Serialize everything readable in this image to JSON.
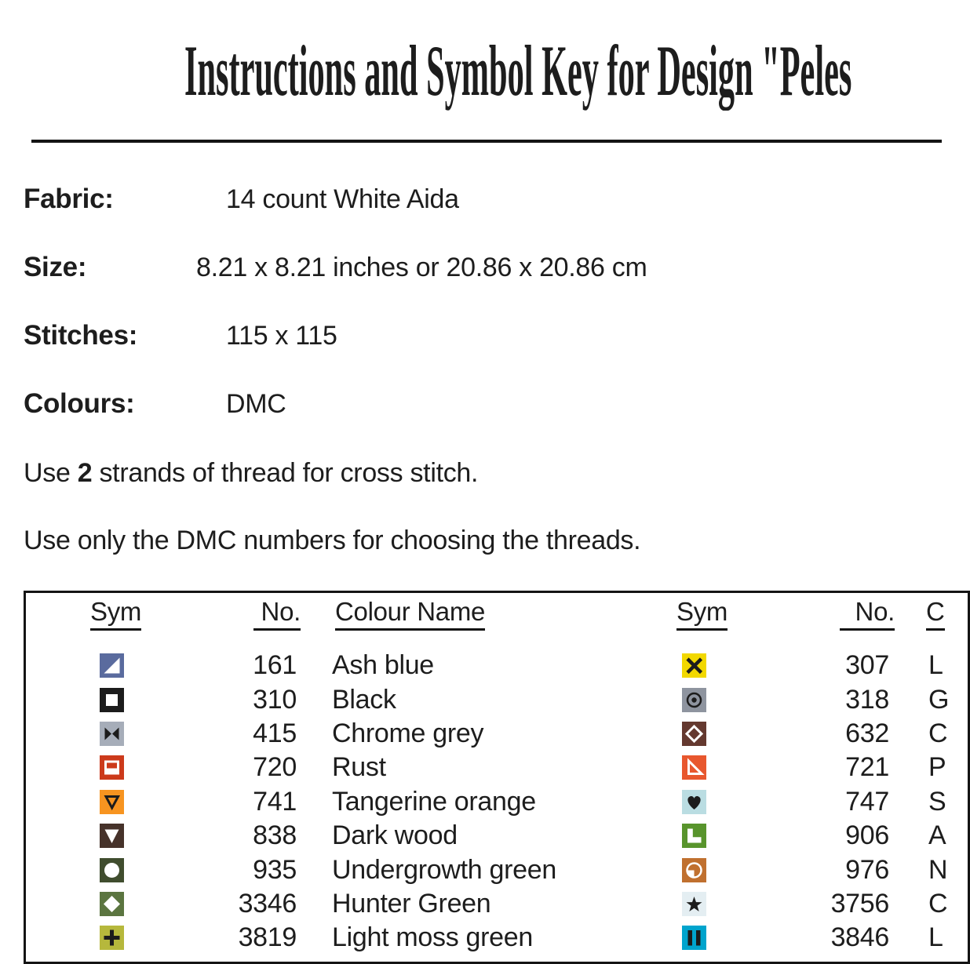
{
  "title": "Instructions and Symbol Key for Design \"Peles",
  "info": {
    "rows": [
      {
        "label": "Fabric:",
        "value": "14 count White Aida"
      },
      {
        "label": "Size:",
        "value": "8.21 x 8.21 inches or 20.86 x 20.86 cm"
      },
      {
        "label": "Stitches:",
        "value": "115 x 115"
      },
      {
        "label": "Colours:",
        "value": "DMC"
      }
    ]
  },
  "notes": {
    "strands": {
      "pre": "Use ",
      "bold": "2",
      "post": " strands of thread for cross stitch."
    },
    "dmc": "Use only the DMC numbers for choosing the threads."
  },
  "key_table": {
    "headers": {
      "sym_left": "Sym",
      "no_left": "No.",
      "colour_name_left": "Colour Name",
      "sym_right": "Sym",
      "no_right": "No.",
      "colour_name_right_partial": "C"
    },
    "left_rows": [
      {
        "no": "161",
        "name": "Ash blue",
        "symbol": {
          "icon": "triangle-lower-right-icon",
          "bg": "#5a6b9e",
          "fg": "#ffffff"
        }
      },
      {
        "no": "310",
        "name": "Black",
        "symbol": {
          "icon": "open-square-icon",
          "bg": "#1c1c1c",
          "fg": "#ffffff"
        }
      },
      {
        "no": "415",
        "name": "Chrome grey",
        "symbol": {
          "icon": "bowtie-icon",
          "bg": "#a6adb9",
          "fg": "#1c1c1c"
        }
      },
      {
        "no": "720",
        "name": "Rust",
        "symbol": {
          "icon": "half-block-icon",
          "bg": "#cc3a1b",
          "fg": "#ffffff"
        }
      },
      {
        "no": "741",
        "name": "Tangerine orange",
        "symbol": {
          "icon": "triangle-down-outline-icon",
          "bg": "#f79420",
          "fg": "#1c1c1c"
        }
      },
      {
        "no": "838",
        "name": "Dark wood",
        "symbol": {
          "icon": "triangle-down-icon",
          "bg": "#46322a",
          "fg": "#ffffff"
        }
      },
      {
        "no": "935",
        "name": "Undergrowth green",
        "symbol": {
          "icon": "circle-icon",
          "bg": "#404d2e",
          "fg": "#ffffff"
        }
      },
      {
        "no": "3346",
        "name": "Hunter Green",
        "symbol": {
          "icon": "diamond-icon",
          "bg": "#5b7540",
          "fg": "#ffffff"
        }
      },
      {
        "no": "3819",
        "name": "Light moss green",
        "symbol": {
          "icon": "plus-icon",
          "bg": "#b6b83c",
          "fg": "#1c1c1c"
        }
      }
    ],
    "right_rows": [
      {
        "no": "307",
        "name": "L",
        "symbol": {
          "icon": "x-cross-icon",
          "bg": "#f2d800",
          "fg": "#1c1c1c"
        }
      },
      {
        "no": "318",
        "name": "G",
        "symbol": {
          "icon": "circle-dot-icon",
          "bg": "#8e949f",
          "fg": "#1c1c1c"
        }
      },
      {
        "no": "632",
        "name": "C",
        "symbol": {
          "icon": "diamond-outline-icon",
          "bg": "#64392f",
          "fg": "#ffffff"
        }
      },
      {
        "no": "721",
        "name": "P",
        "symbol": {
          "icon": "triangle-outline-bl-icon",
          "bg": "#e8572e",
          "fg": "#ffffff"
        }
      },
      {
        "no": "747",
        "name": "S",
        "symbol": {
          "icon": "heart-icon",
          "bg": "#badde2",
          "fg": "#1c1c1c"
        }
      },
      {
        "no": "906",
        "name": "A",
        "symbol": {
          "icon": "l-block-icon",
          "bg": "#58942c",
          "fg": "#ffffff"
        }
      },
      {
        "no": "976",
        "name": "N",
        "symbol": {
          "icon": "circle-quarter-icon",
          "bg": "#c0702f",
          "fg": "#ffffff"
        }
      },
      {
        "no": "3756",
        "name": "C",
        "symbol": {
          "icon": "star-icon",
          "bg": "#e4eef2",
          "fg": "#1c1c1c"
        }
      },
      {
        "no": "3846",
        "name": "L",
        "symbol": {
          "icon": "double-bars-icon",
          "bg": "#00a4cd",
          "fg": "#1c1c1c"
        }
      }
    ]
  },
  "palette": {
    "text": "#1d1d1d",
    "line": "#141414",
    "background": "#ffffff"
  }
}
